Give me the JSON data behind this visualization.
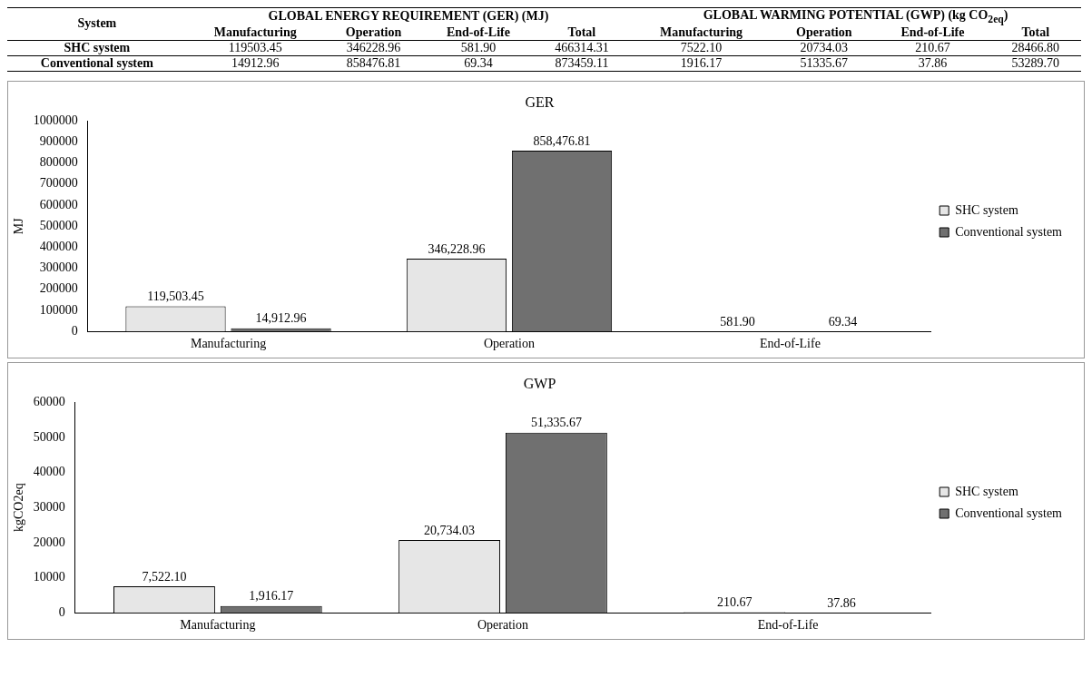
{
  "chart_data": [
    {
      "type": "other",
      "annotations": [
        "System",
        "GLOBAL ENERGY REQUIREMENT (GER) (MJ)",
        "GLOBAL WARMING POTENTIAL (GWP) (kg CO$_{2eq}$)",
        "Manufacturing",
        "Operation",
        "End-of-Life",
        "Total",
        "Manufacturing",
        "Operation",
        "End-of-Life",
        "Total",
        "SHC system",
        "119503.45",
        "346228.96",
        "581.90",
        "466314.31",
        "7522.10",
        "20734.03",
        "210.67",
        "28466.80",
        "Conventional system",
        "14912.96",
        "858476.81",
        "69.34",
        "873459.11",
        "1916.17",
        "51335.67",
        "37.86",
        "53289.70"
      ]
    },
    {
      "type": "bar",
      "title": "GER",
      "ylabel": "MJ",
      "categories": [
        "Manufacturing",
        "Operation",
        "End-of-Life"
      ],
      "legend": "right",
      "ylim": [
        0,
        1000000
      ],
      "yticks": [
        0,
        100000,
        200000,
        300000,
        400000,
        500000,
        600000,
        700000,
        800000,
        900000,
        1000000
      ],
      "grid": false,
      "series": [
        {
          "name": "SHC system",
          "color": "#e6e6e6",
          "values": [
            119503.45,
            346228.96,
            581.9
          ],
          "value_labels": [
            "119,503.45",
            "346,228.96",
            "581.90"
          ]
        },
        {
          "name": "Conventional system",
          "color": "#707070",
          "values": [
            14912.96,
            858476.81,
            69.34
          ],
          "value_labels": [
            "14,912.96",
            "858,476.81",
            "69.34"
          ]
        }
      ]
    },
    {
      "type": "bar",
      "title": "GWP",
      "ylabel": "kgCO2eq",
      "categories": [
        "Manufacturing",
        "Operation",
        "End-of-Life"
      ],
      "legend": "right",
      "ylim": [
        0,
        60000
      ],
      "yticks": [
        0,
        10000,
        20000,
        30000,
        40000,
        50000,
        60000
      ],
      "grid": false,
      "series": [
        {
          "name": "SHC system",
          "color": "#e6e6e6",
          "values": [
            7522.1,
            20734.03,
            210.67
          ],
          "value_labels": [
            "7,522.10",
            "20,734.03",
            "210.67"
          ]
        },
        {
          "name": "Conventional system",
          "color": "#707070",
          "values": [
            1916.17,
            51335.67,
            37.86
          ],
          "value_labels": [
            "1,916.17",
            "51,335.67",
            "37.86"
          ]
        }
      ]
    }
  ]
}
